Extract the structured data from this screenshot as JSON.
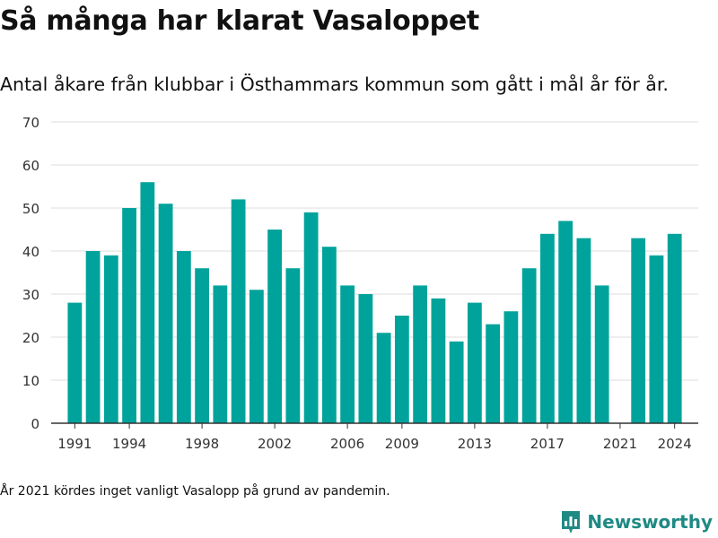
{
  "header": {
    "title": "Så många har klarat Vasaloppet",
    "subtitle": "Antal åkare från klubbar i Östhammars kommun som gått i mål år för år."
  },
  "footer": {
    "note": "År 2021 kördes inget vanligt Vasalopp på grund av pandemin.",
    "brand": "Newsworthy",
    "brand_icon": "bar-chart-logo-icon"
  },
  "colors": {
    "bar": "#00a39b",
    "grid": "#dddddd",
    "axis": "#333333",
    "brand": "#1f8a84"
  },
  "chart_data": {
    "type": "bar",
    "title": "",
    "xlabel": "",
    "ylabel": "",
    "ylim": [
      0,
      70
    ],
    "yticks": [
      0,
      10,
      20,
      30,
      40,
      50,
      60,
      70
    ],
    "xticks": [
      1991,
      1994,
      1998,
      2002,
      2006,
      2009,
      2013,
      2017,
      2021,
      2024
    ],
    "grid": true,
    "categories": [
      1991,
      1992,
      1993,
      1994,
      1995,
      1996,
      1997,
      1998,
      1999,
      2000,
      2001,
      2002,
      2003,
      2004,
      2005,
      2006,
      2007,
      2008,
      2009,
      2010,
      2011,
      2012,
      2013,
      2014,
      2015,
      2016,
      2017,
      2018,
      2019,
      2020,
      2021,
      2022,
      2023,
      2024
    ],
    "values": [
      28,
      40,
      39,
      50,
      56,
      51,
      40,
      36,
      32,
      52,
      31,
      45,
      36,
      49,
      41,
      32,
      30,
      21,
      25,
      32,
      29,
      19,
      28,
      23,
      26,
      36,
      44,
      47,
      43,
      32,
      0,
      43,
      39,
      44
    ]
  }
}
